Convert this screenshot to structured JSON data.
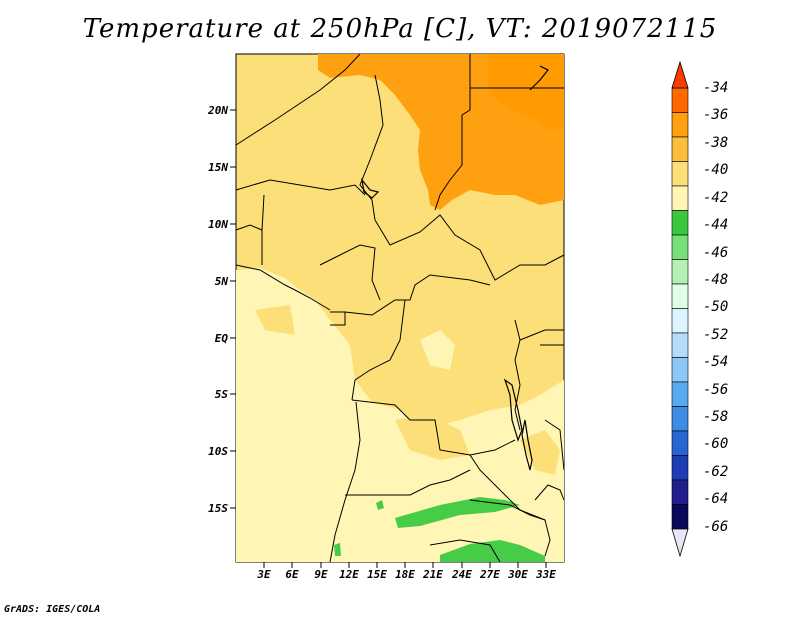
{
  "title": "Temperature at 250hPa [C], VT: 2019072115",
  "credit": "GrADS: IGES/COLA",
  "lat_labels": [
    "20N",
    "15N",
    "10N",
    "5N",
    "EQ",
    "5S",
    "10S",
    "15S"
  ],
  "lon_labels": [
    "3E",
    "6E",
    "9E",
    "12E",
    "15E",
    "18E",
    "21E",
    "24E",
    "27E",
    "30E",
    "33E"
  ],
  "colorbar": {
    "labels": [
      "-34",
      "-36",
      "-38",
      "-40",
      "-42",
      "-44",
      "-46",
      "-48",
      "-50",
      "-52",
      "-54",
      "-56",
      "-58",
      "-60",
      "-62",
      "-64",
      "-66"
    ],
    "colors": [
      "#fa3c00",
      "#ff6a00",
      "#ffa010",
      "#fcbf3c",
      "#fcdf78",
      "#fff5b4",
      "#3cc83c",
      "#78e078",
      "#b4f0b4",
      "#e0ffe6",
      "#dcf4ff",
      "#b4dcfa",
      "#8cc8f5",
      "#5aaaf0",
      "#3c8ce6",
      "#2864d2",
      "#1e3cb4",
      "#1e1e8c",
      "#0a0a5a",
      "#e6e6f5"
    ]
  },
  "map_colors": {
    "c38": "#ffa010",
    "c40": "#fcbf3c",
    "c42": "#fcdf78",
    "c44": "#fff5b4",
    "green": "#46cc46"
  }
}
